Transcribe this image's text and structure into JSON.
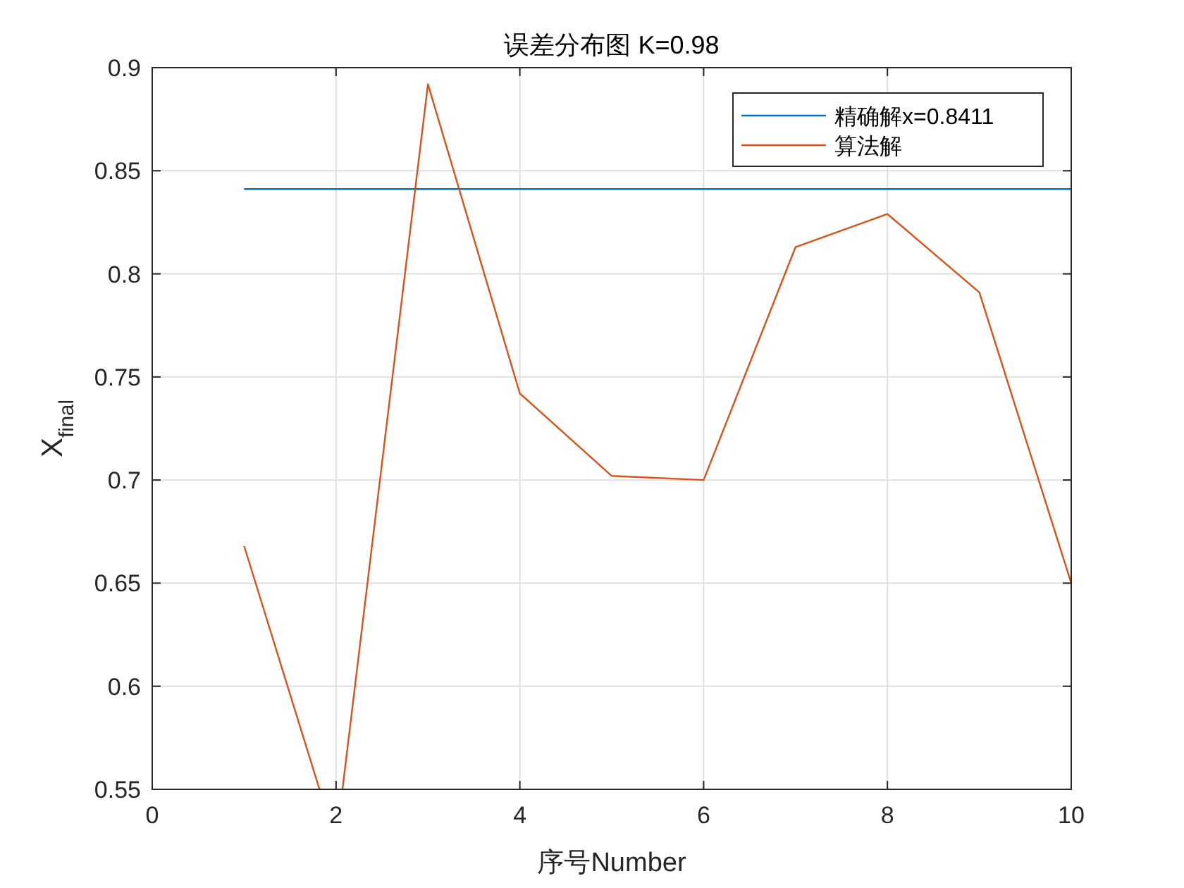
{
  "chart_data": {
    "type": "line",
    "title": "误差分布图 K=0.98",
    "xlabel": "序号Number",
    "ylabel": "X$_{final}$",
    "series": [
      {
        "name": "精确解x=0.8411",
        "color": "#0072bd",
        "x": [
          1,
          10
        ],
        "values": [
          0.8411,
          0.8411
        ]
      },
      {
        "name": "算法解",
        "color": "#d95319",
        "x": [
          1,
          1.82,
          2,
          2.07,
          3,
          4,
          5,
          6,
          7,
          8,
          9,
          10
        ],
        "values": [
          0.668,
          0.55,
          null,
          0.55,
          0.892,
          0.742,
          0.702,
          0.7,
          0.813,
          0.829,
          0.791,
          0.65
        ]
      }
    ],
    "xlim": [
      0,
      10
    ],
    "xticks": [
      0,
      2,
      4,
      6,
      8,
      10
    ],
    "ylim": [
      0.55,
      0.9
    ],
    "yticks": [
      0.55,
      0.6,
      0.65,
      0.7,
      0.75,
      0.8,
      0.85,
      0.9
    ],
    "grid": true,
    "legend": "top right",
    "line_style": "solid",
    "marker": "none"
  }
}
